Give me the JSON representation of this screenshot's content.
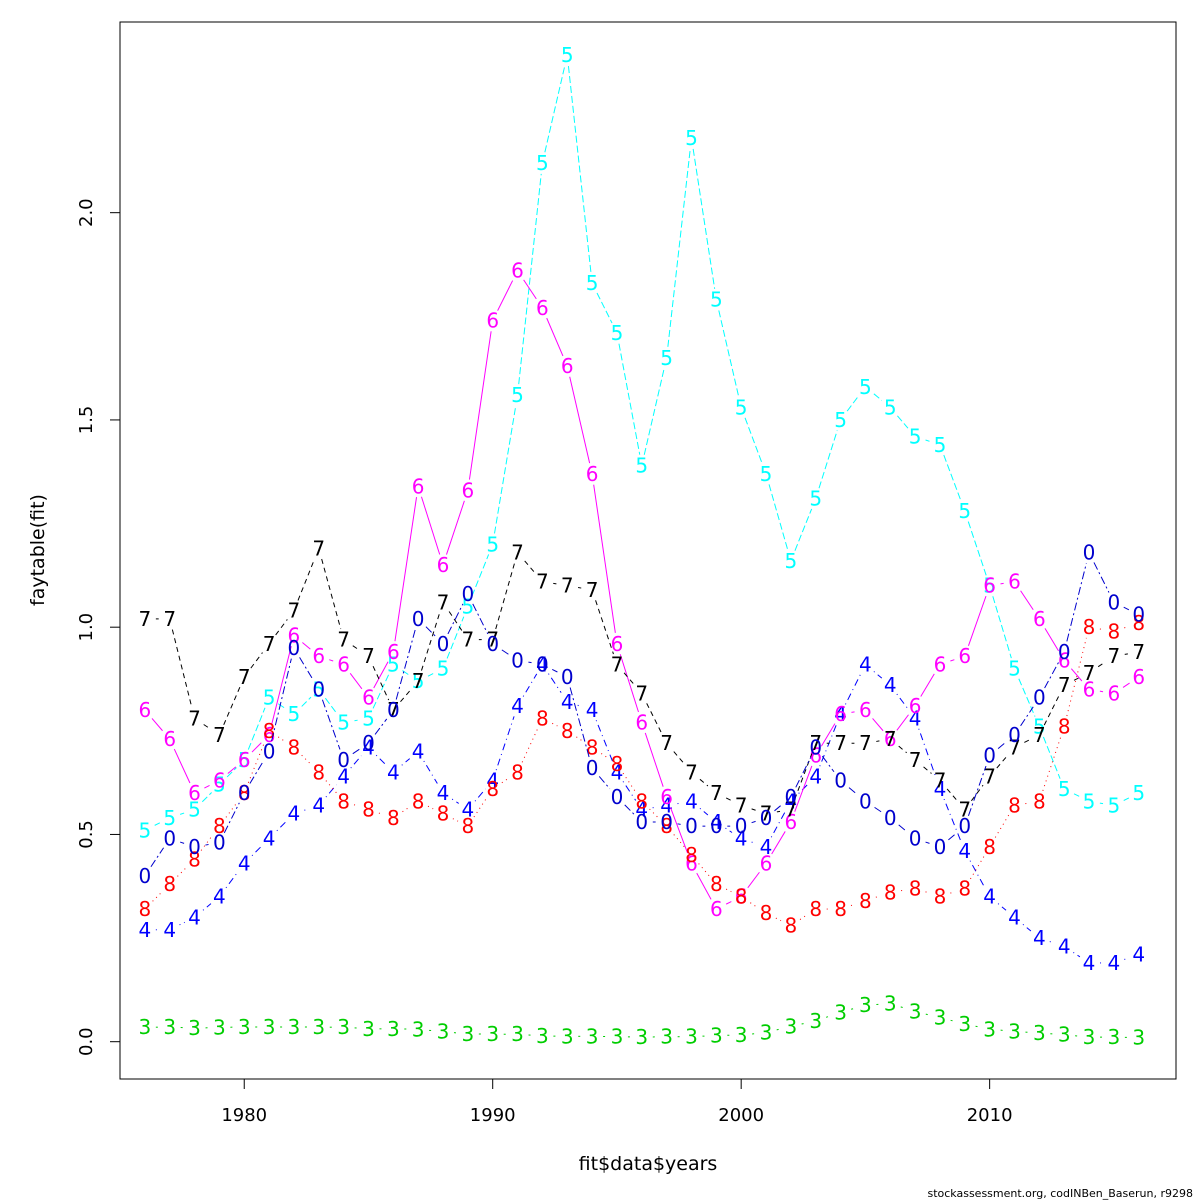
{
  "chart_data": {
    "type": "line",
    "xlabel": "fit$data$years",
    "ylabel": "faytable(fit)",
    "xlim": [
      1975,
      2017.5
    ],
    "ylim": [
      -0.09,
      2.46
    ],
    "x_ticks": [
      1980,
      1990,
      2000,
      2010
    ],
    "y_ticks": [
      0.0,
      0.5,
      1.0,
      1.5,
      2.0
    ],
    "x_tick_labels": [
      "1980",
      "1990",
      "2000",
      "2010"
    ],
    "y_tick_labels": [
      "0.0",
      "0.5",
      "1.0",
      "1.5",
      "2.0"
    ],
    "grid": false,
    "years": [
      1976,
      1977,
      1978,
      1979,
      1980,
      1981,
      1982,
      1983,
      1984,
      1985,
      1986,
      1987,
      1988,
      1989,
      1990,
      1991,
      1992,
      1993,
      1994,
      1995,
      1996,
      1997,
      1998,
      1999,
      2000,
      2001,
      2002,
      2003,
      2004,
      2005,
      2006,
      2007,
      2008,
      2009,
      2010,
      2011,
      2012,
      2013,
      2014,
      2015,
      2016
    ],
    "series": [
      {
        "symbol": "3",
        "color": "#00cd00",
        "dash": "2,6",
        "values": [
          0.035,
          0.035,
          0.033,
          0.034,
          0.036,
          0.035,
          0.036,
          0.035,
          0.035,
          0.031,
          0.031,
          0.03,
          0.024,
          0.019,
          0.018,
          0.018,
          0.014,
          0.013,
          0.013,
          0.012,
          0.011,
          0.012,
          0.012,
          0.015,
          0.016,
          0.022,
          0.037,
          0.05,
          0.071,
          0.088,
          0.092,
          0.073,
          0.058,
          0.043,
          0.03,
          0.025,
          0.021,
          0.017,
          0.011,
          0.011,
          0.01
        ]
      },
      {
        "symbol": "4",
        "color": "#0000ff",
        "dash": "1,4,7,4",
        "values": [
          0.27,
          0.27,
          0.3,
          0.35,
          0.43,
          0.49,
          0.55,
          0.57,
          0.64,
          0.71,
          0.65,
          0.7,
          0.6,
          0.56,
          0.63,
          0.81,
          0.91,
          0.82,
          0.8,
          0.65,
          0.56,
          0.57,
          0.58,
          0.53,
          0.49,
          0.47,
          0.58,
          0.64,
          0.79,
          0.91,
          0.86,
          0.78,
          0.61,
          0.46,
          0.35,
          0.3,
          0.25,
          0.23,
          0.19,
          0.19,
          0.21
        ]
      },
      {
        "symbol": "5",
        "color": "#00ffff",
        "dash": "7,3",
        "values": [
          0.51,
          0.54,
          0.56,
          0.62,
          0.68,
          0.83,
          0.79,
          0.85,
          0.77,
          0.78,
          0.91,
          0.87,
          0.9,
          1.05,
          1.2,
          1.56,
          2.12,
          2.38,
          1.83,
          1.71,
          1.39,
          1.65,
          2.18,
          1.79,
          1.53,
          1.37,
          1.16,
          1.31,
          1.5,
          1.58,
          1.53,
          1.46,
          1.44,
          1.28,
          1.1,
          0.9,
          0.76,
          0.61,
          0.58,
          0.57,
          0.6
        ]
      },
      {
        "symbol": "6",
        "color": "#ff00ff",
        "dash": "",
        "values": [
          0.8,
          0.73,
          0.6,
          0.63,
          0.68,
          0.74,
          0.98,
          0.93,
          0.91,
          0.83,
          0.94,
          1.34,
          1.15,
          1.33,
          1.74,
          1.86,
          1.77,
          1.63,
          1.37,
          0.96,
          0.77,
          0.59,
          0.43,
          0.32,
          0.35,
          0.43,
          0.53,
          0.69,
          0.79,
          0.8,
          0.73,
          0.81,
          0.91,
          0.93,
          1.1,
          1.11,
          1.02,
          0.92,
          0.85,
          0.84,
          0.88
        ]
      },
      {
        "symbol": "7",
        "color": "#000000",
        "dash": "5,4",
        "values": [
          1.02,
          1.02,
          0.78,
          0.74,
          0.88,
          0.96,
          1.04,
          1.19,
          0.97,
          0.93,
          0.8,
          0.87,
          1.06,
          0.97,
          0.97,
          1.18,
          1.11,
          1.1,
          1.09,
          0.91,
          0.84,
          0.72,
          0.65,
          0.6,
          0.57,
          0.55,
          0.56,
          0.72,
          0.72,
          0.72,
          0.73,
          0.68,
          0.63,
          0.56,
          0.64,
          0.71,
          0.74,
          0.86,
          0.89,
          0.93,
          0.94
        ]
      },
      {
        "symbol": "8",
        "color": "#ff0000",
        "dash": "1,4",
        "values": [
          0.32,
          0.38,
          0.44,
          0.52,
          0.6,
          0.75,
          0.71,
          0.65,
          0.58,
          0.56,
          0.54,
          0.58,
          0.55,
          0.52,
          0.61,
          0.65,
          0.78,
          0.75,
          0.71,
          0.67,
          0.58,
          0.52,
          0.45,
          0.38,
          0.35,
          0.31,
          0.28,
          0.32,
          0.32,
          0.34,
          0.36,
          0.37,
          0.35,
          0.37,
          0.47,
          0.57,
          0.58,
          0.76,
          1.0,
          0.99,
          1.01
        ]
      },
      {
        "symbol": "0",
        "color": "#0000cd",
        "dash": "8,3,2,3",
        "values": [
          0.4,
          0.49,
          0.47,
          0.48,
          0.6,
          0.7,
          0.95,
          0.85,
          0.68,
          0.72,
          0.8,
          1.02,
          0.96,
          1.08,
          0.96,
          0.92,
          0.91,
          0.88,
          0.66,
          0.59,
          0.53,
          0.53,
          0.52,
          0.52,
          0.52,
          0.54,
          0.59,
          0.71,
          0.63,
          0.58,
          0.54,
          0.49,
          0.47,
          0.52,
          0.69,
          0.74,
          0.83,
          0.94,
          1.18,
          1.06,
          1.03
        ]
      }
    ]
  },
  "footer_text": "stockassessment.org, codINBen_Baserun, r9298"
}
